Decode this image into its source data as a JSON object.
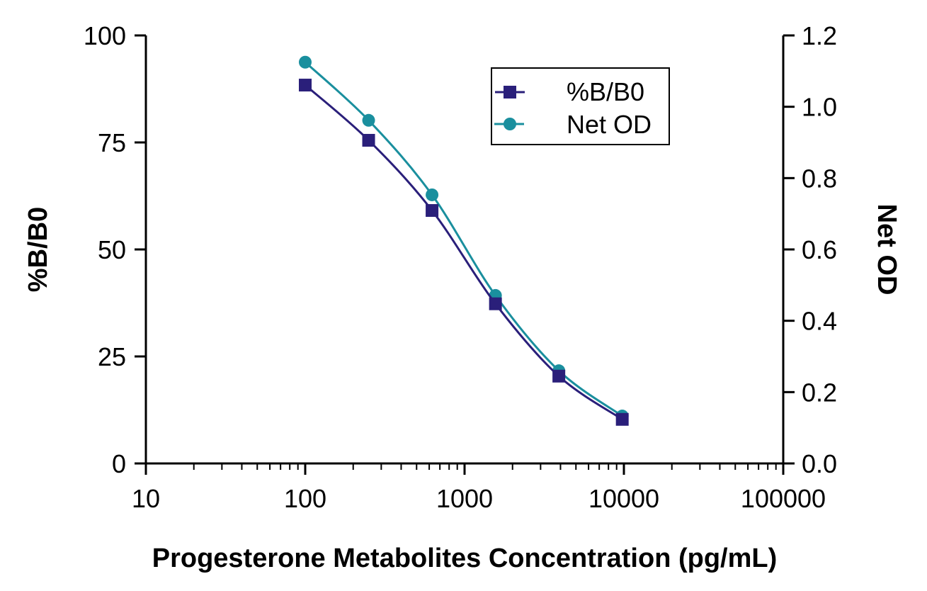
{
  "chart_data": {
    "type": "line",
    "title": "",
    "xlabel": "Progesterone Metabolites Concentration (pg/mL)",
    "ylabel": "%B/B0",
    "y2label": "Net OD",
    "xscale": "log",
    "xlim": [
      10,
      100000
    ],
    "ylim": [
      0,
      100
    ],
    "y2lim": [
      0,
      1.2
    ],
    "x_ticks": [
      "10",
      "100",
      "1000",
      "10000",
      "100000"
    ],
    "y_ticks": [
      "0",
      "25",
      "50",
      "75",
      "100"
    ],
    "y2_ticks": [
      "0.0",
      "0.2",
      "0.4",
      "0.6",
      "0.8",
      "1.0",
      "1.2"
    ],
    "grid": false,
    "legend_position": "top-right",
    "x": [
      100,
      250,
      625,
      1563,
      3906,
      9766
    ],
    "series": [
      {
        "name": "%B/B0",
        "axis": "left",
        "marker": "square",
        "color": "#2a1f7a",
        "values": [
          88.4,
          75.5,
          59.1,
          37.3,
          20.4,
          10.3
        ]
      },
      {
        "name": "Net OD",
        "axis": "right",
        "marker": "circle",
        "color": "#1a8f9e",
        "values": [
          1.125,
          0.962,
          0.753,
          0.471,
          0.26,
          0.133
        ]
      }
    ]
  }
}
